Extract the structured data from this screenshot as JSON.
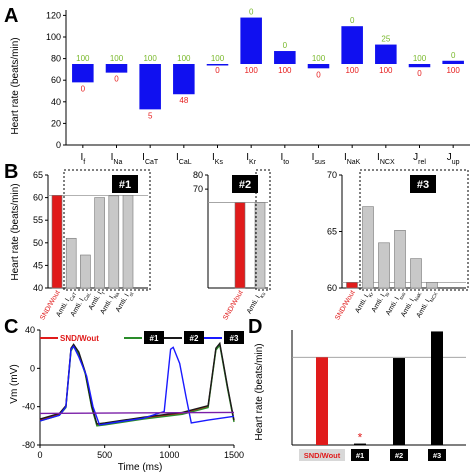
{
  "chart_data": [
    {
      "panel": "A",
      "type": "bar",
      "ylabel": "Heart rate (beats/min)",
      "ylim": [
        0,
        125
      ],
      "yticks": [
        "0",
        "20",
        "40",
        "60",
        "80",
        "100",
        "120"
      ],
      "baseline": 75,
      "categories": [
        "I",
        "I",
        "I",
        "I",
        "I",
        "I",
        "I",
        "I",
        "I",
        "I",
        "J",
        "J"
      ],
      "category_subscripts": [
        "f",
        "Na",
        "CaT",
        "CaL",
        "Ks",
        "Kr",
        "to",
        "sus",
        "NaK",
        "NCX",
        "rel",
        "up"
      ],
      "values": [
        58,
        67,
        33,
        47,
        75,
        118,
        87,
        71,
        110,
        93,
        72,
        78
      ],
      "top_labels": [
        "100",
        "100",
        "100",
        "100",
        "100",
        "0",
        "0",
        "100",
        "0",
        "25",
        "100",
        "0"
      ],
      "bottom_labels": [
        "0",
        "0",
        "5",
        "48",
        "0",
        "100",
        "100",
        "0",
        "100",
        "100",
        "0",
        "100"
      ],
      "colors": {
        "bar": "#1010f0",
        "top_label": "#78b82a",
        "bottom_label": "#e62020"
      }
    },
    {
      "panel": "B1",
      "type": "bar",
      "ylabel": "Heart rate (beats/min)",
      "ylim": [
        40,
        65
      ],
      "yticks": [
        "40",
        "45",
        "50",
        "55",
        "60",
        "65"
      ],
      "reference": 60.5,
      "box_label": "#1",
      "categories": [
        "SND/Wout",
        "Amti. I",
        "Amti. I",
        "Amti. I",
        "Amti. I",
        "Amti. I"
      ],
      "category_subscripts": [
        "",
        "CaT",
        "CaL",
        "f",
        "Na",
        "st"
      ],
      "values": [
        60.5,
        51,
        47.3,
        60,
        60.4,
        60.5
      ],
      "colors": {
        "control": "#e01b1b",
        "test": "#c8c8c8"
      }
    },
    {
      "panel": "B2",
      "type": "bar",
      "ylim": [
        0,
        80
      ],
      "yticks": [
        "70",
        "80"
      ],
      "reference": 60.5,
      "box_label": "#2",
      "categories": [
        "SND/Wout",
        "Amti. I"
      ],
      "category_subscripts": [
        "",
        "Ks"
      ],
      "values": [
        60.5,
        60.5
      ],
      "colors": {
        "control": "#e01b1b",
        "test": "#c8c8c8"
      }
    },
    {
      "panel": "B3",
      "type": "bar",
      "ylim": [
        60,
        70
      ],
      "yticks": [
        "60",
        "65",
        "70"
      ],
      "reference": 60.5,
      "box_label": "#3",
      "categories": [
        "SND/Wout",
        "Amti. I",
        "Amti. I",
        "Amti. I",
        "Amti. I",
        "Amti. I"
      ],
      "category_subscripts": [
        "",
        "Kr",
        "to",
        "sus",
        "NaK",
        "NCX"
      ],
      "values": [
        60.5,
        67.2,
        64,
        65.1,
        62.6,
        60.5
      ],
      "colors": {
        "control": "#e01b1b",
        "test": "#c8c8c8"
      }
    },
    {
      "panel": "C",
      "type": "line",
      "ylabel": "Vm (mV)",
      "xlabel": "Time (ms)",
      "xlim": [
        0,
        1500
      ],
      "ylim": [
        -80,
        40
      ],
      "xticks": [
        "0",
        "500",
        "1000",
        "1500"
      ],
      "yticks": [
        "-80",
        "-40",
        "0",
        "40"
      ],
      "series": [
        {
          "name": "SND/Wout",
          "color": "#e01b1b",
          "x": [
            0,
            150,
            200,
            240,
            260,
            300,
            350,
            400,
            440,
            500,
            800,
            1100,
            1300,
            1360,
            1390,
            1410,
            1450,
            1500
          ],
          "y": [
            -54,
            -48,
            -40,
            20,
            24,
            16,
            -5,
            -40,
            -59,
            -58,
            -52,
            -47,
            -40,
            20,
            25,
            10,
            -20,
            -55
          ]
        },
        {
          "name": "#1",
          "color": "#2a8c2a",
          "x": [
            0,
            150,
            200,
            240,
            260,
            300,
            350,
            400,
            440,
            500,
            800,
            1100,
            1300,
            1360,
            1390,
            1410,
            1450,
            1500
          ],
          "y": [
            -55,
            -49,
            -41,
            18,
            23,
            15,
            -6,
            -41,
            -60,
            -59,
            -53,
            -48,
            -41,
            19,
            24,
            9,
            -21,
            -56
          ]
        },
        {
          "name": "#2",
          "color": "#1a1a1a",
          "x": [
            0,
            150,
            200,
            240,
            260,
            300,
            350,
            400,
            440,
            500,
            800,
            1100,
            1300,
            1360,
            1390,
            1410,
            1450,
            1500
          ],
          "y": [
            -53,
            -47,
            -39,
            21,
            25,
            17,
            -4,
            -39,
            -58,
            -57,
            -51,
            -46,
            -39,
            21,
            26,
            11,
            -19,
            -54
          ]
        },
        {
          "name": "#3",
          "color": "#1a1aff",
          "x": [
            0,
            150,
            200,
            240,
            260,
            300,
            360,
            410,
            460,
            600,
            800,
            960,
            1010,
            1030,
            1080,
            1130,
            1170,
            1300,
            1500
          ],
          "y": [
            -55,
            -49,
            -40,
            20,
            23,
            12,
            -8,
            -40,
            -59,
            -56,
            -52,
            -45,
            20,
            22,
            5,
            -30,
            -57,
            -54,
            -50
          ]
        },
        {
          "name": "",
          "color": "#7a1fa8",
          "x": [
            0,
            1500
          ],
          "y": [
            -47,
            -46
          ]
        }
      ]
    },
    {
      "panel": "D",
      "type": "bar",
      "ylabel": "Heart rate (beats/min)",
      "ylim": [
        0,
        80
      ],
      "reference": 61,
      "categories": [
        "SND/Wout",
        "#1",
        "#2",
        "#3"
      ],
      "values": [
        61,
        1,
        60.5,
        79
      ],
      "annotations": [
        {
          "category": "#1",
          "text": "*"
        }
      ],
      "colors": {
        "control": "#e01b1b",
        "test": "#000000",
        "label_bg_control": "#d8d8d8",
        "label_bg_test": "#000000",
        "label_text_test": "#ffffff"
      }
    }
  ],
  "panel_labels": {
    "A": "A",
    "B": "B",
    "C": "C",
    "D": "D"
  }
}
